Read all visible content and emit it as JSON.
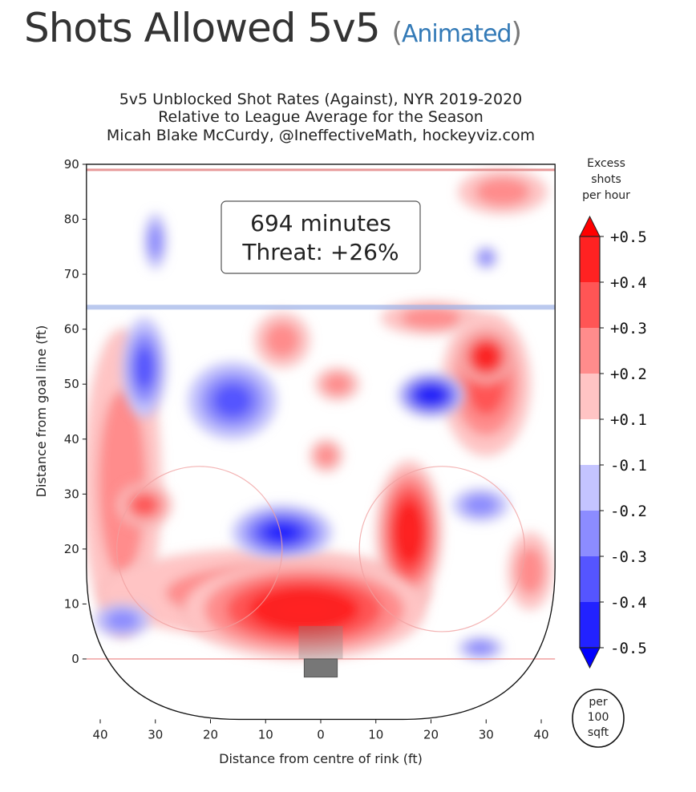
{
  "header": {
    "title": "Shots Allowed 5v5",
    "paren_open": "(",
    "link": "Animated",
    "paren_close": ")"
  },
  "chart_data": {
    "type": "heatmap",
    "title_lines": [
      "5v5 Unblocked Shot Rates (Against), NYR 2019-2020",
      "Relative to League Average for the Season",
      "Micah Blake McCurdy, @IneffectiveMath, hockeyviz.com"
    ],
    "xlabel": "Distance from centre of rink (ft)",
    "ylabel": "Distance from goal line (ft)",
    "xlim": [
      -42.5,
      42.5
    ],
    "ylim": [
      -11,
      90
    ],
    "xticks": [
      -40,
      -30,
      -20,
      -10,
      0,
      10,
      20,
      30,
      40
    ],
    "xtick_labels": [
      "40",
      "30",
      "20",
      "10",
      "0",
      "10",
      "20",
      "30",
      "40"
    ],
    "yticks": [
      0,
      10,
      20,
      30,
      40,
      50,
      60,
      70,
      80,
      90
    ],
    "ytick_labels": [
      "0",
      "10",
      "20",
      "30",
      "40",
      "50",
      "60",
      "70",
      "80",
      "90"
    ],
    "annotation": [
      "694 minutes",
      "Threat: +26%"
    ],
    "colorbar": {
      "title": [
        "Excess",
        "shots",
        "per hour"
      ],
      "ticks": [
        "+0.5",
        "+0.4",
        "+0.3",
        "+0.2",
        "+0.1",
        "-0.1",
        "-0.2",
        "-0.3",
        "-0.4",
        "-0.5"
      ],
      "colors": [
        "#ff2222",
        "#ff5555",
        "#ff8c8c",
        "#ffc4c4",
        "#ffffff",
        "#c4c4ff",
        "#8c8cff",
        "#5555ff",
        "#2222ff"
      ],
      "over_color": "#ff0000",
      "under_color": "#0000ff",
      "unit_badge": [
        "per",
        "100",
        "sqft"
      ]
    },
    "hotspots": [
      {
        "x": -36,
        "y": 32,
        "rx": 7,
        "ry": 28,
        "value": 0.15
      },
      {
        "x": 33,
        "y": 85,
        "rx": 8,
        "ry": 4,
        "value": 0.15
      },
      {
        "x": 20,
        "y": 62,
        "rx": 9,
        "ry": 3,
        "value": 0.15
      },
      {
        "x": 38,
        "y": 16,
        "rx": 4,
        "ry": 7,
        "value": 0.2
      },
      {
        "x": -7,
        "y": 58,
        "rx": 5,
        "ry": 5,
        "value": 0.2
      },
      {
        "x": 3,
        "y": 50,
        "rx": 4,
        "ry": 3,
        "value": 0.2
      },
      {
        "x": 1,
        "y": 37,
        "rx": 3,
        "ry": 3,
        "value": 0.2
      },
      {
        "x": -10,
        "y": 12,
        "rx": 30,
        "ry": 8,
        "value": 0.15
      },
      {
        "x": 30,
        "y": 50,
        "rx": 8,
        "ry": 13,
        "value": 0.3
      },
      {
        "x": -32,
        "y": 28,
        "rx": 5,
        "ry": 4,
        "value": 0.3
      },
      {
        "x": 16,
        "y": 23,
        "rx": 6,
        "ry": 13,
        "value": 0.45
      },
      {
        "x": 30,
        "y": 55,
        "rx": 5,
        "ry": 5,
        "value": 0.45
      },
      {
        "x": -3,
        "y": 9,
        "rx": 22,
        "ry": 9,
        "value": 0.5
      },
      {
        "x": 20,
        "y": 48,
        "rx": 6,
        "ry": 4,
        "value": -0.45
      },
      {
        "x": -7,
        "y": 23,
        "rx": 9,
        "ry": 5,
        "value": -0.4
      },
      {
        "x": -16,
        "y": 47,
        "rx": 8,
        "ry": 7,
        "value": -0.25
      },
      {
        "x": -32,
        "y": 53,
        "rx": 4,
        "ry": 9,
        "value": -0.25
      },
      {
        "x": -30,
        "y": 76,
        "rx": 2,
        "ry": 5,
        "value": -0.15
      },
      {
        "x": -36,
        "y": 7,
        "rx": 5,
        "ry": 3,
        "value": -0.15
      },
      {
        "x": 29,
        "y": 28,
        "rx": 5,
        "ry": 3,
        "value": -0.15
      },
      {
        "x": 29,
        "y": 2,
        "rx": 4,
        "ry": 2,
        "value": -0.2
      },
      {
        "x": 30,
        "y": 73,
        "rx": 2,
        "ry": 2,
        "value": -0.2
      }
    ]
  }
}
